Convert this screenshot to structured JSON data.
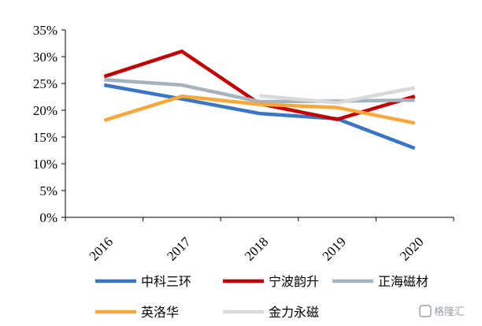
{
  "chart_data": {
    "type": "line",
    "categories": [
      "2016",
      "2017",
      "2018",
      "2019",
      "2020"
    ],
    "series": [
      {
        "name": "中科三环",
        "color": "#3a76c4",
        "values": [
          24.7,
          22.1,
          19.4,
          18.4,
          12.9
        ]
      },
      {
        "name": "宁波韵升",
        "color": "#c00000",
        "values": [
          26.3,
          31.0,
          21.2,
          18.3,
          22.6
        ]
      },
      {
        "name": "正海磁材",
        "color": "#a5b3bf",
        "values": [
          25.7,
          24.7,
          21.6,
          21.7,
          21.9
        ]
      },
      {
        "name": "英洛华",
        "color": "#f8a73a",
        "values": [
          18.1,
          22.6,
          21.1,
          20.5,
          17.6
        ]
      },
      {
        "name": "金力永磁",
        "color": "#d9d9d9",
        "values": [
          null,
          null,
          22.7,
          21.4,
          24.2
        ]
      }
    ],
    "yticks": [
      "0%",
      "5%",
      "10%",
      "15%",
      "20%",
      "25%",
      "30%",
      "35%"
    ],
    "ylim": [
      0,
      35
    ],
    "grid": false,
    "legend": "bottom"
  },
  "watermark": {
    "text": "格隆汇"
  }
}
